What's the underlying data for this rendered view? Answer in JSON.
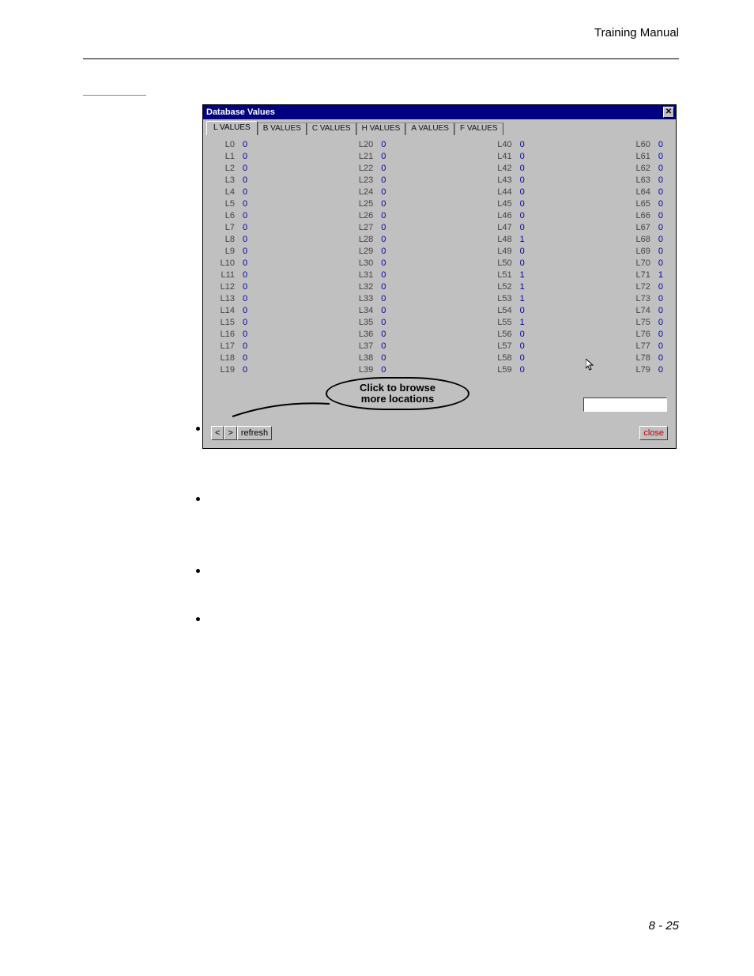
{
  "doc": {
    "header_right": "Training Manual",
    "page_number": "8 - 25"
  },
  "window": {
    "title": "Database Values",
    "tabs": [
      "L VALUES",
      "B VALUES",
      "C VALUES",
      "H VALUES",
      "A VALUES",
      "F VALUES"
    ],
    "rows_per_col": 20,
    "columns": [
      {
        "start": 0,
        "values": [
          0,
          0,
          0,
          0,
          0,
          0,
          0,
          0,
          0,
          0,
          0,
          0,
          0,
          0,
          0,
          0,
          0,
          0,
          0,
          0
        ]
      },
      {
        "start": 20,
        "values": [
          0,
          0,
          0,
          0,
          0,
          0,
          0,
          0,
          0,
          0,
          0,
          0,
          0,
          0,
          0,
          0,
          0,
          0,
          0,
          0
        ]
      },
      {
        "start": 40,
        "values": [
          0,
          0,
          0,
          0,
          0,
          0,
          0,
          0,
          1,
          0,
          0,
          1,
          1,
          1,
          0,
          1,
          0,
          0,
          0,
          0
        ]
      },
      {
        "start": 60,
        "values": [
          0,
          0,
          0,
          0,
          0,
          0,
          0,
          0,
          0,
          0,
          0,
          1,
          0,
          0,
          0,
          0,
          0,
          0,
          0,
          0
        ]
      }
    ],
    "annotation": {
      "l1": "Click to browse",
      "l2": "more locations"
    },
    "buttons": {
      "prev": "<",
      "next": ">",
      "refresh": "refresh",
      "close": "close"
    }
  }
}
